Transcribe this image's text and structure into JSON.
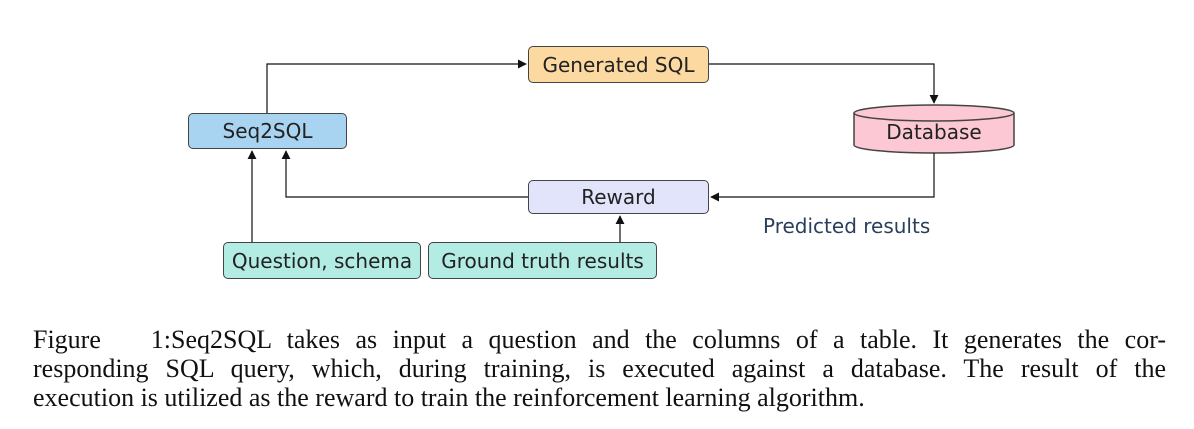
{
  "diagram": {
    "nodes": {
      "generated_sql": "Generated SQL",
      "seq2sql": "Seq2SQL",
      "database": "Database",
      "reward": "Reward",
      "question_schema": "Question, schema",
      "ground_truth": "Ground truth results"
    },
    "edge_labels": {
      "predicted_results": "Predicted results"
    },
    "colors": {
      "generated_sql": "#fcd9a1",
      "seq2sql": "#a8d4f2",
      "database": "#fbc8d4",
      "reward": "#e2e4fb",
      "inputs": "#b2ece3",
      "predicted_text": "#2a3f5c"
    }
  },
  "caption": {
    "label": "Figure 1:",
    "line1": "Seq2SQL takes as input a question and the columns of a table.  It generates the cor-",
    "line2": "responding SQL query, which, during training, is executed against a database.  The result of the",
    "line3": "execution is utilized as the reward to train the reinforcement learning algorithm."
  }
}
